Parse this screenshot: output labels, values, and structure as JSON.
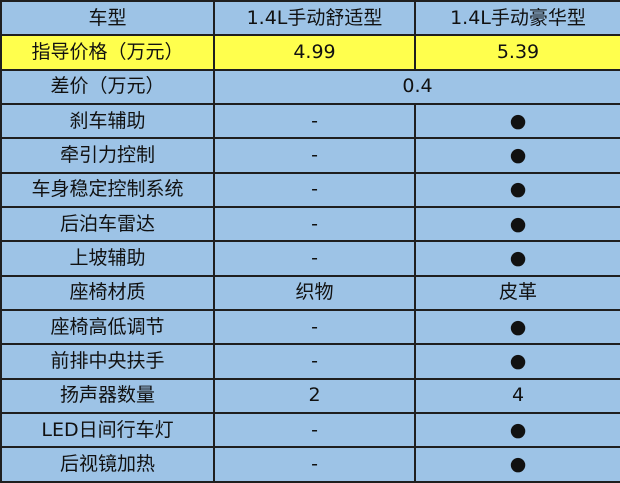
{
  "table": {
    "header": [
      "车型",
      "1.4L手动舒适型",
      "1.4L手动豪华型"
    ],
    "rows": [
      [
        "指导价格（万元）",
        "4.99",
        "5.39"
      ],
      [
        "差价（万元）",
        "0.4"
      ],
      [
        "刹车辅助",
        "-",
        "●"
      ],
      [
        "牵引力控制",
        "-",
        "●"
      ],
      [
        "车身稳定控制系统",
        "-",
        "●"
      ],
      [
        "后泊车雷达",
        "-",
        "●"
      ],
      [
        "上坡辅助",
        "-",
        "●"
      ],
      [
        "座椅材质",
        "织物",
        "皮革"
      ],
      [
        "座椅高低调节",
        "-",
        "●"
      ],
      [
        "前排中央扶手",
        "-",
        "●"
      ],
      [
        "扬声器数量",
        "2",
        "4"
      ],
      [
        "LED日间行车灯",
        "-",
        "●"
      ],
      [
        "后视镜加热",
        "-",
        "●"
      ]
    ]
  }
}
